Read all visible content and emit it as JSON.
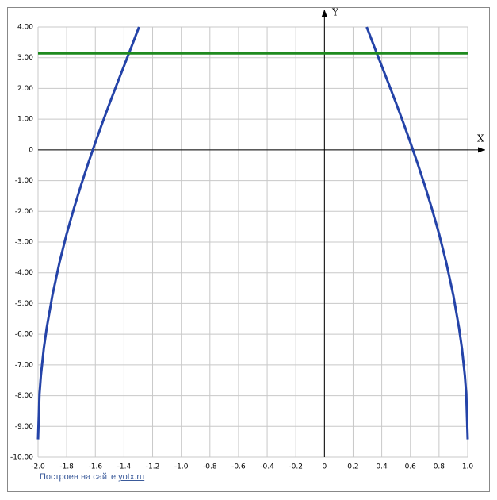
{
  "chart_data": {
    "type": "line",
    "x_axis_label": "X",
    "y_axis_label": "Y",
    "xlim": [
      -2.0,
      1.0
    ],
    "ylim": [
      -10.0,
      4.0
    ],
    "xticks": [
      {
        "value": -2.0,
        "label": "-2.0"
      },
      -1.8,
      -1.6,
      -1.4,
      -1.2,
      {
        "value": -1.0,
        "label": "-1.0"
      },
      -0.8,
      -0.6,
      -0.4,
      -0.2,
      0,
      0.2,
      0.4,
      0.6,
      0.8,
      {
        "value": 1.0,
        "label": "1.0"
      }
    ],
    "yticks": [
      {
        "value": 4,
        "label": "4.00"
      },
      {
        "value": 3,
        "label": "3.00"
      },
      {
        "value": 2,
        "label": "2.00"
      },
      {
        "value": 1,
        "label": "1.00"
      },
      0,
      {
        "value": -1,
        "label": "-1.00"
      },
      {
        "value": -2,
        "label": "-2.00"
      },
      {
        "value": -3,
        "label": "-3.00"
      },
      {
        "value": -4,
        "label": "-4.00"
      },
      {
        "value": -5,
        "label": "-5.00"
      },
      {
        "value": -6,
        "label": "-6.00"
      },
      {
        "value": -7,
        "label": "-7.00"
      },
      {
        "value": -8,
        "label": "-8.00"
      },
      {
        "value": -9,
        "label": "-9.00"
      },
      {
        "value": -10,
        "label": "-10.00"
      }
    ],
    "grid": true,
    "series": [
      {
        "color": "#2443a8",
        "x": [
          -2.0,
          -1.99,
          -1.98,
          -1.96,
          -1.94,
          -1.9,
          -1.85,
          -1.8,
          -1.75,
          -1.7,
          -1.65,
          -1.6,
          -1.55,
          -1.5,
          -1.45,
          -1.4,
          -1.35,
          -1.3,
          -1.295
        ],
        "values": [
          -9.42,
          -7.95,
          -7.34,
          -6.47,
          -5.81,
          -4.74,
          -3.66,
          -2.73,
          -1.91,
          -1.15,
          -0.44,
          0.24,
          0.89,
          1.52,
          2.13,
          2.73,
          3.33,
          3.94,
          4.0
        ]
      },
      {
        "color": "#2443a8",
        "x": [
          0.295,
          0.3,
          0.35,
          0.4,
          0.45,
          0.5,
          0.55,
          0.6,
          0.65,
          0.7,
          0.75,
          0.8,
          0.85,
          0.9,
          0.94,
          0.96,
          0.98,
          0.99,
          1.0
        ],
        "values": [
          4.0,
          3.94,
          3.33,
          2.73,
          2.13,
          1.52,
          0.89,
          0.24,
          -0.44,
          -1.15,
          -1.91,
          -2.73,
          -3.66,
          -4.74,
          -5.81,
          -6.47,
          -7.34,
          -7.95,
          -9.42
        ]
      },
      {
        "color": "#1f8a1f",
        "x": [
          -2.0,
          1.0
        ],
        "values": [
          3.14,
          3.14
        ]
      }
    ],
    "footer": {
      "text": "Построен на сайте",
      "link": "yotx.ru"
    }
  }
}
